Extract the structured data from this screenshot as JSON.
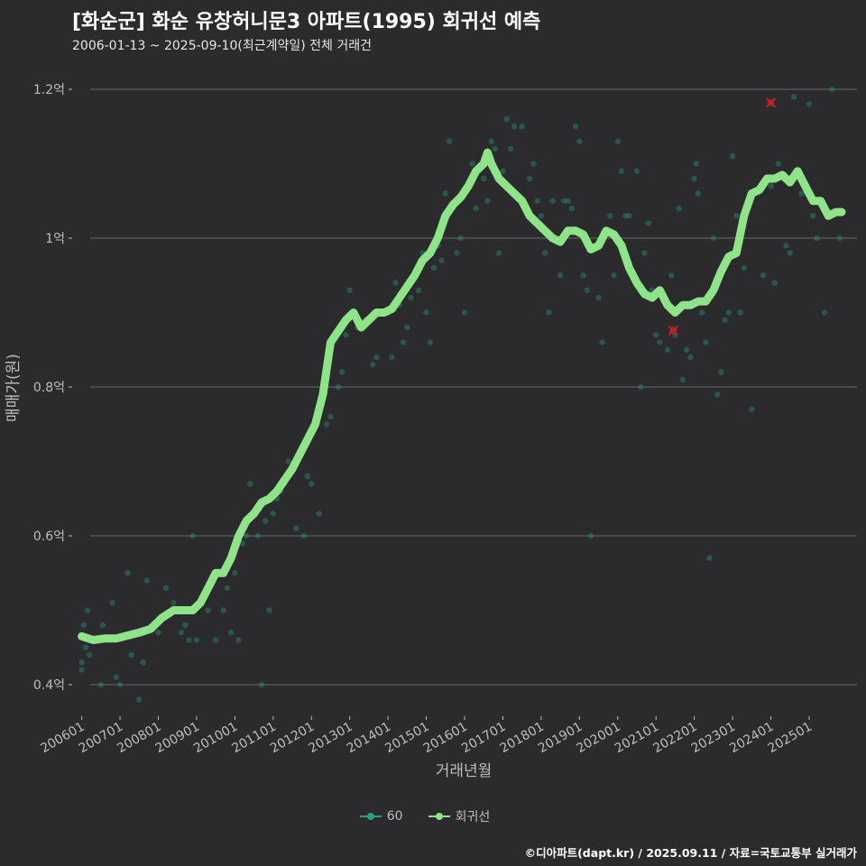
{
  "title": "[화순군] 화순 유창허니문3 아파트(1995) 회귀선 예측",
  "subtitle": "2006-01-13 ~ 2025-09-10(최근계약일) 전체 거래건",
  "caption": "©디아파트(dapt.kr) / 2025.09.11 / 자료=국토교통부 실거래가",
  "colors": {
    "background": "#2b2b2d",
    "scatter": "#2aa07f",
    "regression": "#8fe388",
    "highlight": "#c0202a",
    "grid": "#6a6a6a",
    "axis_text": "#bdbdbd"
  },
  "legend": [
    {
      "label": "60",
      "color": "#2aa07f"
    },
    {
      "label": "회귀선",
      "color": "#8fe388"
    }
  ],
  "chart_data": {
    "type": "scatter",
    "xlabel": "거래년월",
    "ylabel": "매매가(원)",
    "xlim": [
      2005.75,
      2026.25
    ],
    "ylim": [
      0.36,
      1.24
    ],
    "y_unit": "억",
    "y_ticks": [
      {
        "value": 0.4,
        "label": "0.4억"
      },
      {
        "value": 0.6,
        "label": "0.6억"
      },
      {
        "value": 0.8,
        "label": "0.8억"
      },
      {
        "value": 1.0,
        "label": "1억"
      },
      {
        "value": 1.2,
        "label": "1.2억"
      }
    ],
    "x_ticks": [
      {
        "value": 2006.0,
        "label": "200601"
      },
      {
        "value": 2007.0,
        "label": "200701"
      },
      {
        "value": 2008.0,
        "label": "200801"
      },
      {
        "value": 2009.0,
        "label": "200901"
      },
      {
        "value": 2010.0,
        "label": "201001"
      },
      {
        "value": 2011.0,
        "label": "201101"
      },
      {
        "value": 2012.0,
        "label": "201201"
      },
      {
        "value": 2013.0,
        "label": "201301"
      },
      {
        "value": 2014.0,
        "label": "201401"
      },
      {
        "value": 2015.0,
        "label": "201501"
      },
      {
        "value": 2016.0,
        "label": "201601"
      },
      {
        "value": 2017.0,
        "label": "201701"
      },
      {
        "value": 2018.0,
        "label": "201801"
      },
      {
        "value": 2019.0,
        "label": "201901"
      },
      {
        "value": 2020.0,
        "label": "202001"
      },
      {
        "value": 2021.0,
        "label": "202101"
      },
      {
        "value": 2022.0,
        "label": "202201"
      },
      {
        "value": 2023.0,
        "label": "202301"
      },
      {
        "value": 2024.0,
        "label": "202401"
      },
      {
        "value": 2025.0,
        "label": "202501"
      }
    ],
    "series": [
      {
        "name": "60",
        "kind": "scatter",
        "points": [
          [
            2006.0,
            0.42
          ],
          [
            2006.0,
            0.43
          ],
          [
            2006.05,
            0.48
          ],
          [
            2006.1,
            0.45
          ],
          [
            2006.15,
            0.5
          ],
          [
            2006.2,
            0.44
          ],
          [
            2006.3,
            0.46
          ],
          [
            2006.5,
            0.4
          ],
          [
            2006.55,
            0.48
          ],
          [
            2006.7,
            0.46
          ],
          [
            2006.8,
            0.51
          ],
          [
            2006.9,
            0.41
          ],
          [
            2007.0,
            0.4
          ],
          [
            2007.2,
            0.55
          ],
          [
            2007.3,
            0.44
          ],
          [
            2007.5,
            0.38
          ],
          [
            2007.6,
            0.43
          ],
          [
            2007.7,
            0.54
          ],
          [
            2008.0,
            0.47
          ],
          [
            2008.2,
            0.53
          ],
          [
            2008.4,
            0.51
          ],
          [
            2008.6,
            0.47
          ],
          [
            2008.7,
            0.48
          ],
          [
            2008.8,
            0.46
          ],
          [
            2008.9,
            0.6
          ],
          [
            2009.0,
            0.46
          ],
          [
            2009.3,
            0.5
          ],
          [
            2009.5,
            0.46
          ],
          [
            2009.7,
            0.5
          ],
          [
            2009.8,
            0.53
          ],
          [
            2009.9,
            0.47
          ],
          [
            2010.0,
            0.55
          ],
          [
            2010.1,
            0.46
          ],
          [
            2010.2,
            0.59
          ],
          [
            2010.3,
            0.6
          ],
          [
            2010.4,
            0.67
          ],
          [
            2010.6,
            0.6
          ],
          [
            2010.7,
            0.4
          ],
          [
            2010.8,
            0.62
          ],
          [
            2010.9,
            0.5
          ],
          [
            2011.0,
            0.63
          ],
          [
            2011.1,
            0.65
          ],
          [
            2011.2,
            0.66
          ],
          [
            2011.3,
            0.67
          ],
          [
            2011.4,
            0.7
          ],
          [
            2011.5,
            0.69
          ],
          [
            2011.6,
            0.61
          ],
          [
            2011.8,
            0.6
          ],
          [
            2011.9,
            0.68
          ],
          [
            2012.0,
            0.67
          ],
          [
            2012.2,
            0.63
          ],
          [
            2012.4,
            0.75
          ],
          [
            2012.5,
            0.76
          ],
          [
            2012.7,
            0.8
          ],
          [
            2012.8,
            0.82
          ],
          [
            2012.9,
            0.87
          ],
          [
            2013.0,
            0.93
          ],
          [
            2013.2,
            0.88
          ],
          [
            2013.4,
            0.89
          ],
          [
            2013.6,
            0.83
          ],
          [
            2013.7,
            0.84
          ],
          [
            2013.9,
            0.9
          ],
          [
            2014.0,
            0.9
          ],
          [
            2014.1,
            0.84
          ],
          [
            2014.2,
            0.94
          ],
          [
            2014.3,
            0.91
          ],
          [
            2014.4,
            0.86
          ],
          [
            2014.5,
            0.88
          ],
          [
            2014.6,
            0.92
          ],
          [
            2014.8,
            0.93
          ],
          [
            2014.9,
            0.98
          ],
          [
            2015.0,
            0.9
          ],
          [
            2015.1,
            0.86
          ],
          [
            2015.2,
            0.96
          ],
          [
            2015.3,
            0.99
          ],
          [
            2015.4,
            0.97
          ],
          [
            2015.5,
            1.06
          ],
          [
            2015.6,
            1.13
          ],
          [
            2015.8,
            0.98
          ],
          [
            2015.9,
            1.0
          ],
          [
            2016.0,
            0.9
          ],
          [
            2016.2,
            1.1
          ],
          [
            2016.3,
            1.04
          ],
          [
            2016.5,
            1.08
          ],
          [
            2016.6,
            1.05
          ],
          [
            2016.7,
            1.13
          ],
          [
            2016.8,
            1.12
          ],
          [
            2016.9,
            0.98
          ],
          [
            2017.0,
            1.09
          ],
          [
            2017.1,
            1.16
          ],
          [
            2017.2,
            1.12
          ],
          [
            2017.3,
            1.15
          ],
          [
            2017.5,
            1.15
          ],
          [
            2017.7,
            1.08
          ],
          [
            2017.8,
            1.1
          ],
          [
            2017.9,
            1.05
          ],
          [
            2018.0,
            1.03
          ],
          [
            2018.1,
            0.98
          ],
          [
            2018.2,
            0.9
          ],
          [
            2018.3,
            1.05
          ],
          [
            2018.5,
            0.95
          ],
          [
            2018.6,
            1.05
          ],
          [
            2018.7,
            1.05
          ],
          [
            2018.8,
            1.04
          ],
          [
            2018.9,
            1.15
          ],
          [
            2019.0,
            1.13
          ],
          [
            2019.1,
            0.95
          ],
          [
            2019.2,
            0.93
          ],
          [
            2019.3,
            0.6
          ],
          [
            2019.5,
            0.92
          ],
          [
            2019.6,
            0.86
          ],
          [
            2019.8,
            1.03
          ],
          [
            2019.9,
            0.95
          ],
          [
            2020.0,
            1.13
          ],
          [
            2020.1,
            1.09
          ],
          [
            2020.2,
            1.03
          ],
          [
            2020.3,
            1.03
          ],
          [
            2020.5,
            1.09
          ],
          [
            2020.6,
            0.8
          ],
          [
            2020.7,
            0.98
          ],
          [
            2020.8,
            1.02
          ],
          [
            2020.9,
            0.93
          ],
          [
            2021.0,
            0.87
          ],
          [
            2021.1,
            0.86
          ],
          [
            2021.3,
            0.85
          ],
          [
            2021.4,
            0.95
          ],
          [
            2021.5,
            0.87
          ],
          [
            2021.6,
            1.04
          ],
          [
            2021.7,
            0.81
          ],
          [
            2021.8,
            0.85
          ],
          [
            2021.9,
            0.84
          ],
          [
            2022.0,
            1.08
          ],
          [
            2022.05,
            1.1
          ],
          [
            2022.1,
            1.06
          ],
          [
            2022.2,
            0.9
          ],
          [
            2022.3,
            0.86
          ],
          [
            2022.4,
            0.57
          ],
          [
            2022.5,
            1.0
          ],
          [
            2022.6,
            0.79
          ],
          [
            2022.7,
            0.82
          ],
          [
            2022.8,
            0.89
          ],
          [
            2022.9,
            0.9
          ],
          [
            2023.0,
            1.11
          ],
          [
            2023.1,
            1.03
          ],
          [
            2023.2,
            0.9
          ],
          [
            2023.3,
            0.96
          ],
          [
            2023.5,
            0.77
          ],
          [
            2023.8,
            0.95
          ],
          [
            2024.0,
            1.07
          ],
          [
            2024.1,
            0.94
          ],
          [
            2024.2,
            1.1
          ],
          [
            2024.4,
            0.99
          ],
          [
            2024.5,
            0.98
          ],
          [
            2024.6,
            1.19
          ],
          [
            2024.8,
            1.06
          ],
          [
            2025.0,
            1.18
          ],
          [
            2025.1,
            1.03
          ],
          [
            2025.2,
            1.0
          ],
          [
            2025.4,
            0.9
          ],
          [
            2025.6,
            1.2
          ],
          [
            2025.8,
            1.0
          ]
        ]
      },
      {
        "name": "회귀선",
        "kind": "line",
        "points": [
          [
            2006.0,
            0.465
          ],
          [
            2006.3,
            0.46
          ],
          [
            2006.6,
            0.462
          ],
          [
            2006.9,
            0.462
          ],
          [
            2007.2,
            0.466
          ],
          [
            2007.5,
            0.47
          ],
          [
            2007.8,
            0.475
          ],
          [
            2008.1,
            0.49
          ],
          [
            2008.4,
            0.5
          ],
          [
            2008.7,
            0.5
          ],
          [
            2008.9,
            0.5
          ],
          [
            2009.1,
            0.51
          ],
          [
            2009.3,
            0.53
          ],
          [
            2009.5,
            0.55
          ],
          [
            2009.7,
            0.55
          ],
          [
            2009.9,
            0.57
          ],
          [
            2010.1,
            0.6
          ],
          [
            2010.3,
            0.62
          ],
          [
            2010.5,
            0.63
          ],
          [
            2010.7,
            0.645
          ],
          [
            2010.9,
            0.65
          ],
          [
            2011.1,
            0.66
          ],
          [
            2011.3,
            0.675
          ],
          [
            2011.5,
            0.69
          ],
          [
            2011.7,
            0.71
          ],
          [
            2011.9,
            0.73
          ],
          [
            2012.1,
            0.75
          ],
          [
            2012.3,
            0.79
          ],
          [
            2012.5,
            0.86
          ],
          [
            2012.7,
            0.875
          ],
          [
            2012.9,
            0.89
          ],
          [
            2013.1,
            0.9
          ],
          [
            2013.3,
            0.88
          ],
          [
            2013.5,
            0.89
          ],
          [
            2013.7,
            0.9
          ],
          [
            2013.9,
            0.9
          ],
          [
            2014.1,
            0.905
          ],
          [
            2014.3,
            0.92
          ],
          [
            2014.5,
            0.935
          ],
          [
            2014.7,
            0.95
          ],
          [
            2014.9,
            0.97
          ],
          [
            2015.1,
            0.98
          ],
          [
            2015.3,
            1.0
          ],
          [
            2015.5,
            1.03
          ],
          [
            2015.7,
            1.045
          ],
          [
            2015.9,
            1.055
          ],
          [
            2016.1,
            1.07
          ],
          [
            2016.3,
            1.09
          ],
          [
            2016.5,
            1.1
          ],
          [
            2016.6,
            1.115
          ],
          [
            2016.7,
            1.1
          ],
          [
            2016.9,
            1.08
          ],
          [
            2017.1,
            1.07
          ],
          [
            2017.3,
            1.06
          ],
          [
            2017.5,
            1.05
          ],
          [
            2017.7,
            1.03
          ],
          [
            2017.9,
            1.02
          ],
          [
            2018.1,
            1.01
          ],
          [
            2018.3,
            1.0
          ],
          [
            2018.5,
            0.995
          ],
          [
            2018.7,
            1.01
          ],
          [
            2018.9,
            1.01
          ],
          [
            2019.1,
            1.005
          ],
          [
            2019.3,
            0.985
          ],
          [
            2019.5,
            0.99
          ],
          [
            2019.7,
            1.01
          ],
          [
            2019.9,
            1.005
          ],
          [
            2020.1,
            0.99
          ],
          [
            2020.3,
            0.96
          ],
          [
            2020.5,
            0.94
          ],
          [
            2020.7,
            0.925
          ],
          [
            2020.9,
            0.92
          ],
          [
            2021.1,
            0.93
          ],
          [
            2021.3,
            0.91
          ],
          [
            2021.5,
            0.9
          ],
          [
            2021.7,
            0.91
          ],
          [
            2021.9,
            0.91
          ],
          [
            2022.1,
            0.915
          ],
          [
            2022.3,
            0.915
          ],
          [
            2022.5,
            0.93
          ],
          [
            2022.7,
            0.955
          ],
          [
            2022.9,
            0.975
          ],
          [
            2023.1,
            0.98
          ],
          [
            2023.3,
            1.03
          ],
          [
            2023.5,
            1.06
          ],
          [
            2023.7,
            1.065
          ],
          [
            2023.9,
            1.08
          ],
          [
            2024.1,
            1.08
          ],
          [
            2024.3,
            1.085
          ],
          [
            2024.5,
            1.075
          ],
          [
            2024.7,
            1.09
          ],
          [
            2024.9,
            1.07
          ],
          [
            2025.1,
            1.05
          ],
          [
            2025.3,
            1.05
          ],
          [
            2025.5,
            1.03
          ],
          [
            2025.7,
            1.035
          ],
          [
            2025.85,
            1.035
          ]
        ]
      },
      {
        "name": "highlight",
        "kind": "marker",
        "points": [
          [
            2021.45,
            0.876
          ],
          [
            2024.0,
            1.182
          ]
        ]
      }
    ]
  }
}
